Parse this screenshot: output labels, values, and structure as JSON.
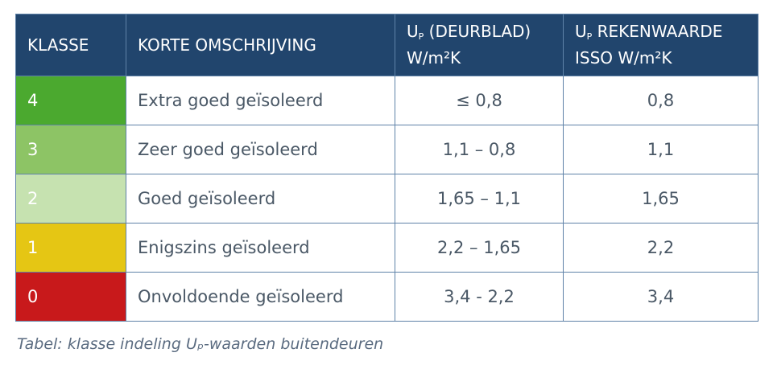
{
  "headers": {
    "klasse": "KLASSE",
    "omschrijving": "KORTE OMSCHRIJVING",
    "up_letter": "U",
    "up_sub": "P",
    "deurblad": "(DEURBLAD)",
    "deurblad_unit": "W/m²K",
    "rekenwaarde": "REKENWAARDE",
    "rekenwaarde_unit": "ISSO W/m²K"
  },
  "rows": [
    {
      "klasse": "4",
      "omschrijving": "Extra goed geïsoleerd",
      "deurblad": "≤ 0,8",
      "rekenwaarde": "0,8",
      "color": "#4ba92f"
    },
    {
      "klasse": "3",
      "omschrijving": "Zeer goed geïsoleerd",
      "deurblad": "1,1 – 0,8",
      "rekenwaarde": "1,1",
      "color": "#8dc465"
    },
    {
      "klasse": "2",
      "omschrijving": "Goed geïsoleerd",
      "deurblad": "1,65 – 1,1",
      "rekenwaarde": "1,65",
      "color": "#c6e2b0"
    },
    {
      "klasse": "1",
      "omschrijving": "Enigszins geïsoleerd",
      "deurblad": "2,2 – 1,65",
      "rekenwaarde": "2,2",
      "color": "#e5c614"
    },
    {
      "klasse": "0",
      "omschrijving": "Onvoldoende geïsoleerd",
      "deurblad": "3,4 - 2,2",
      "rekenwaarde": "3,4",
      "color": "#c8191b"
    }
  ],
  "caption": "Tabel: klasse indeling Uₚ-waarden buitendeuren"
}
